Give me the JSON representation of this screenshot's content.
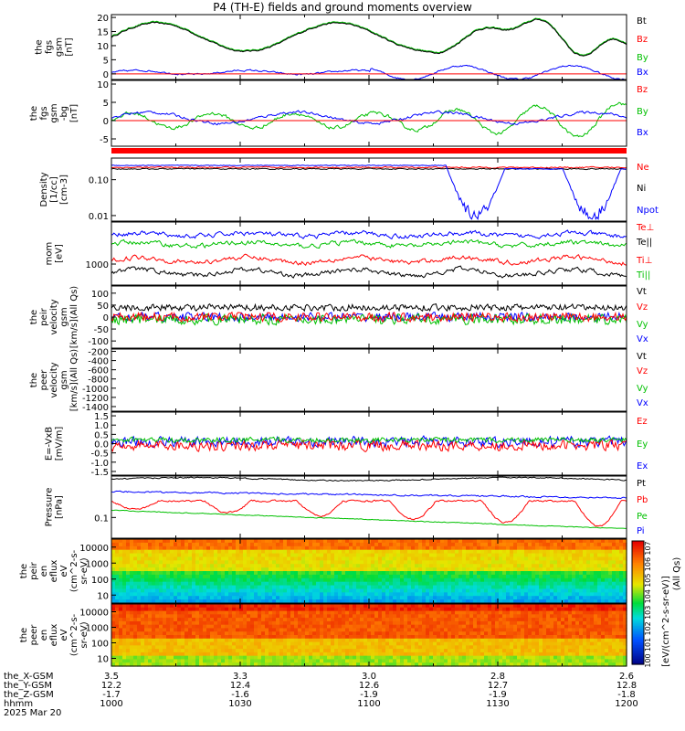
{
  "title": "P4 (TH-E) fields and ground moments overview",
  "date": "2025 Mar 20",
  "x_rows": [
    {
      "label": "the_X-GSM",
      "values": [
        "3.5",
        "3.3",
        "3.0",
        "2.8",
        "2.6"
      ]
    },
    {
      "label": "the_Y-GSM",
      "values": [
        "12.2",
        "12.4",
        "12.6",
        "12.7",
        "12.8"
      ]
    },
    {
      "label": "the_Z-GSM",
      "values": [
        "-1.7",
        "-1.6",
        "-1.9",
        "-1.9",
        "-1.8"
      ]
    },
    {
      "label": "hhmm",
      "values": [
        "1000",
        "1030",
        "1100",
        "1130",
        "1200"
      ]
    }
  ],
  "colorbar_label": "[eV/(cm^2-s-sr-eV)]",
  "colorbar_qs_label": "(All Qs)",
  "colorbar_ticks": [
    "10^7",
    "10^6",
    "10^5",
    "10^4",
    "10^3",
    "10^2",
    "10^1",
    "10^0"
  ],
  "chart_data": [
    {
      "type": "line",
      "ylabel": [
        "the",
        "fgs",
        "gsm",
        "[nT]"
      ],
      "ylim": [
        -2,
        21
      ],
      "yticks": [
        "20",
        "15",
        "10",
        "5",
        "0"
      ],
      "legend": [
        {
          "name": "Bt",
          "color": "#000000"
        },
        {
          "name": "Bz",
          "color": "#ff0000"
        },
        {
          "name": "By",
          "color": "#00c000"
        },
        {
          "name": "Bx",
          "color": "#0000ff"
        }
      ]
    },
    {
      "type": "line",
      "ylabel": [
        "the",
        "fgs",
        "gsm",
        "-bg",
        "[nT]"
      ],
      "ylim": [
        -7,
        11
      ],
      "yticks": [
        "10",
        "5",
        "0",
        "-5"
      ],
      "legend": [
        {
          "name": "Bz",
          "color": "#ff0000"
        },
        {
          "name": "By",
          "color": "#00c000"
        },
        {
          "name": "Bx",
          "color": "#0000ff"
        }
      ]
    },
    {
      "type": "line",
      "ylabel": [
        "Density",
        "[1/cc]",
        "[cm-3]"
      ],
      "scale": "log",
      "ylim": [
        0.007,
        0.4
      ],
      "yticks": [
        "0.10",
        "0.01"
      ],
      "legend": [
        {
          "name": "Ne",
          "color": "#ff0000"
        },
        {
          "name": "Ni",
          "color": "#000000"
        },
        {
          "name": "Npot",
          "color": "#0000ff"
        }
      ]
    },
    {
      "type": "line",
      "ylabel": [
        "mom",
        "[eV]"
      ],
      "scale": "log",
      "yticks": [
        "1000"
      ],
      "legend": [
        {
          "name": "Te⊥",
          "color": "#ff0000"
        },
        {
          "name": "Te||",
          "color": "#000000"
        },
        {
          "name": "Ti⊥",
          "color": "#ff0000"
        },
        {
          "name": "Ti||",
          "color": "#00c000"
        }
      ]
    },
    {
      "type": "line",
      "ylabel": [
        "the",
        "peir",
        "velocity",
        "gsm",
        "[km/s](All Qs)"
      ],
      "ylim": [
        -130,
        130
      ],
      "yticks": [
        "100",
        "50",
        "0",
        "-50",
        "-100"
      ],
      "legend": [
        {
          "name": "Vt",
          "color": "#000000"
        },
        {
          "name": "Vz",
          "color": "#ff0000"
        },
        {
          "name": "Vy",
          "color": "#00c000"
        },
        {
          "name": "Vx",
          "color": "#0000ff"
        }
      ]
    },
    {
      "type": "line",
      "ylabel": [
        "the",
        "peer",
        "velocity",
        "gsm",
        "[km/s](All Qs)"
      ],
      "ylim": [
        -1500,
        -150
      ],
      "yticks": [
        "-200",
        "-400",
        "-600",
        "-800",
        "-1000",
        "-1200",
        "-1400"
      ],
      "legend": [
        {
          "name": "Vt",
          "color": "#000000"
        },
        {
          "name": "Vz",
          "color": "#ff0000"
        },
        {
          "name": "Vy",
          "color": "#00c000"
        },
        {
          "name": "Vx",
          "color": "#0000ff"
        }
      ]
    },
    {
      "type": "line",
      "ylabel": [
        "E=-VxB",
        "[mV/m]"
      ],
      "ylim": [
        -1.7,
        1.7
      ],
      "yticks": [
        "1.5",
        "1.0",
        "0.5",
        "0.0",
        "-0.5",
        "-1.0",
        "-1.5"
      ],
      "legend": [
        {
          "name": "Ez",
          "color": "#ff0000"
        },
        {
          "name": "Ey",
          "color": "#00c000"
        },
        {
          "name": "Ex",
          "color": "#0000ff"
        }
      ]
    },
    {
      "type": "line",
      "ylabel": [
        "Pressure",
        "[nPa]"
      ],
      "scale": "log",
      "yticks": [
        "0.1"
      ],
      "legend": [
        {
          "name": "Pt",
          "color": "#000000"
        },
        {
          "name": "Pb",
          "color": "#ff0000"
        },
        {
          "name": "Pe",
          "color": "#00c000"
        },
        {
          "name": "Pi",
          "color": "#0000ff"
        }
      ]
    },
    {
      "type": "heatmap",
      "ylabel": [
        "the",
        "peir",
        "en",
        "eflux",
        "eV",
        "(cm^2-s-",
        "sr-eV)"
      ],
      "scale": "log",
      "yticks": [
        "10000",
        "1000",
        "100",
        "10"
      ]
    },
    {
      "type": "heatmap",
      "ylabel": [
        "the",
        "peer",
        "en",
        "eflux",
        "eV",
        "(cm^2-s-",
        "sr-eV)"
      ],
      "scale": "log",
      "yticks": [
        "10000",
        "1000",
        "100",
        "10"
      ]
    }
  ]
}
